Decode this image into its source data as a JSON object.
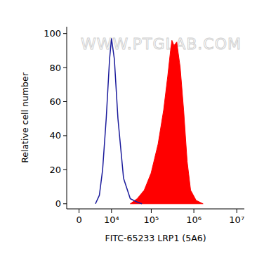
{
  "chart_data": {
    "type": "histogram",
    "x_label": "FITC-65233 LRP1 (5A6)",
    "y_label": "Relative cell number",
    "annotations": [
      {
        "text": "WWW.PTGLAB.COM"
      }
    ],
    "log": "x",
    "xlim": [
      -2000,
      15000000
    ],
    "xticks": [
      0,
      {
        "value": 10000,
        "label": "10⁴"
      },
      {
        "value": 100000,
        "label": "10⁵"
      },
      {
        "value": 1000000,
        "label": "10⁶"
      },
      {
        "value": 10000000,
        "label": "10⁷"
      }
    ],
    "ylim": [
      -3,
      104
    ],
    "yticks": [
      0,
      20,
      40,
      60,
      80,
      100
    ],
    "grid": false,
    "series": [
      {
        "type": "area",
        "color": "#ff0000",
        "x": [
          31000,
          46000,
          68000,
          99000,
          145000,
          196000,
          245000,
          285000,
          307000,
          343000,
          398000,
          480000,
          578000,
          697000,
          840000,
          1130000,
          1640000
        ],
        "values": [
          0,
          3,
          8,
          18,
          35,
          55,
          75,
          90,
          96,
          93,
          95,
          80,
          55,
          25,
          8,
          2,
          0
        ]
      },
      {
        "type": "line",
        "color": "#1c1c9c",
        "x": [
          3000,
          4200,
          5400,
          7000,
          8800,
          10000,
          12000,
          15000,
          21000,
          31000,
          46000,
          60000
        ],
        "values": [
          0,
          5,
          20,
          50,
          85,
          97,
          85,
          50,
          15,
          3,
          1,
          0
        ]
      }
    ]
  }
}
